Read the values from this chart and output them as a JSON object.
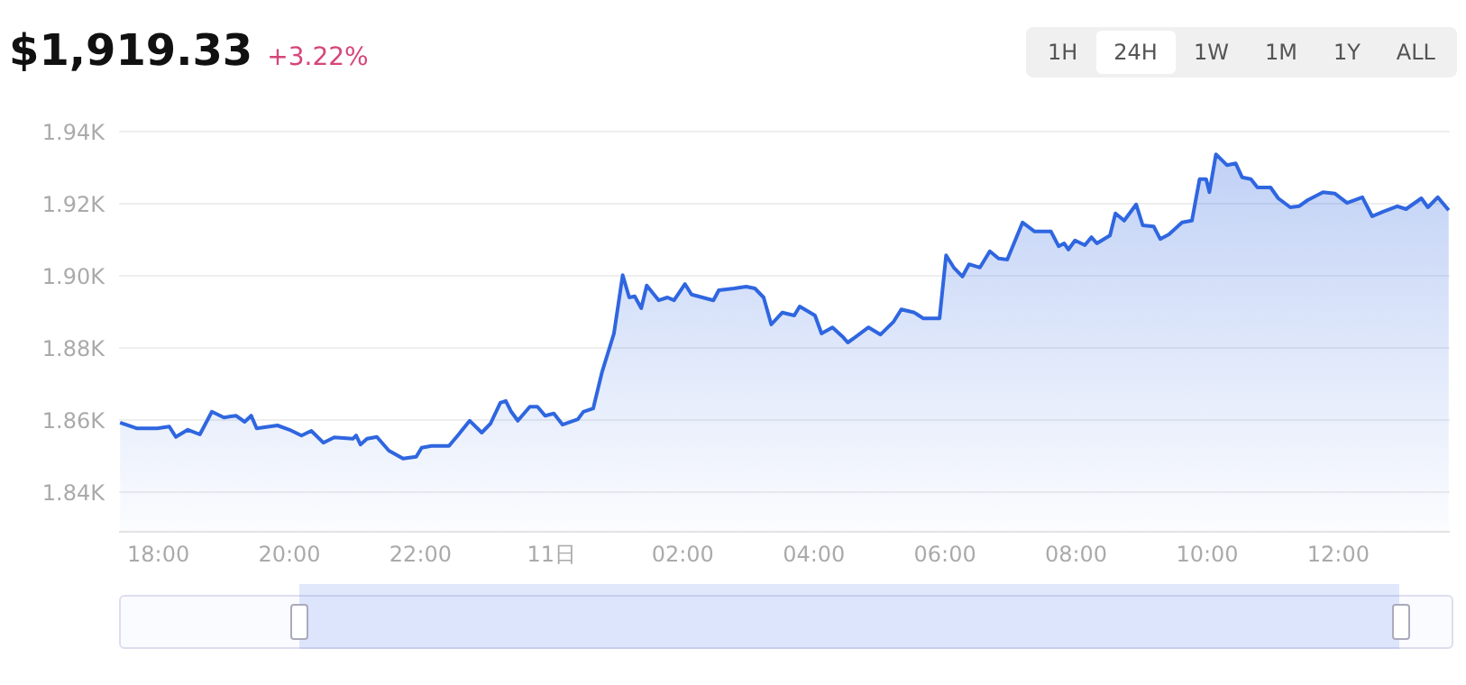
{
  "chart_data": {
    "type": "area",
    "title": "$1,919.33",
    "subtitle": "+3.22%",
    "annotations": [
      "1H",
      "24H",
      "1W",
      "1M",
      "1Y",
      "ALL"
    ],
    "x": [
      "--01-10T17:25",
      "--01-10T17:40",
      "--01-10T17:59",
      "--01-10T18:10",
      "--01-10T18:16",
      "--01-10T18:27",
      "--01-10T18:38",
      "--01-10T18:49",
      "--01-10T19:00",
      "--01-10T19:11",
      "--01-10T19:19",
      "--01-10T19:25",
      "--01-10T19:30",
      "--01-10T19:49",
      "--01-10T20:00",
      "--01-10T20:11",
      "--01-10T20:20",
      "--01-10T20:31",
      "--01-10T20:41",
      "--01-10T20:58",
      "--01-10T21:01",
      "--01-10T21:05",
      "--01-10T21:11",
      "--01-10T21:20",
      "--01-10T21:31",
      "--01-10T21:44",
      "--01-10T21:56",
      "--01-10T22:01",
      "--01-10T22:10",
      "--01-10T22:26",
      "--01-10T22:34",
      "--01-10T22:45",
      "--01-10T22:56",
      "--01-10T23:04",
      "--01-10T23:13",
      "--01-10T23:18",
      "--01-10T23:23",
      "--01-10T23:29",
      "--01-10T23:40",
      "--01-10T23:47",
      "--01-10T23:54",
      "--01-11T00:02",
      "--01-11T00:10",
      "--01-11T00:24",
      "--01-11T00:29",
      "--01-11T00:38",
      "--01-11T00:46",
      "--01-11T00:57",
      "--01-11T01:05",
      "--01-11T01:11",
      "--01-11T01:16",
      "--01-11T01:22",
      "--01-11T01:27",
      "--01-11T01:38",
      "--01-11T01:46",
      "--01-11T01:52",
      "--01-11T02:02",
      "--01-11T02:08",
      "--01-11T02:28",
      "--01-11T02:33",
      "--01-11T02:47",
      "--01-11T02:58",
      "--01-11T03:06",
      "--01-11T03:14",
      "--01-11T03:21",
      "--01-11T03:31",
      "--01-11T03:42",
      "--01-11T03:47",
      "--01-11T04:01",
      "--01-11T04:07",
      "--01-11T04:17",
      "--01-11T04:26",
      "--01-11T04:31",
      "--01-11T04:37",
      "--01-11T04:50",
      "--01-11T05:01",
      "--01-11T05:13",
      "--01-11T05:20",
      "--01-11T05:32",
      "--01-11T05:40",
      "--01-11T05:55",
      "--01-11T06:01",
      "--01-11T06:08",
      "--01-11T06:16",
      "--01-11T06:22",
      "--01-11T06:32",
      "--01-11T06:41",
      "--01-11T06:49",
      "--01-11T06:57",
      "--01-11T07:11",
      "--01-11T07:22",
      "--01-11T07:37",
      "--01-11T07:44",
      "--01-11T07:49",
      "--01-11T07:53",
      "--01-11T07:59",
      "--01-11T08:08",
      "--01-11T08:14",
      "--01-11T08:19",
      "--01-11T08:31",
      "--01-11T08:36",
      "--01-11T08:44",
      "--01-11T08:55",
      "--01-11T09:01",
      "--01-11T09:11",
      "--01-11T09:17",
      "--01-11T09:25",
      "--01-11T09:37",
      "--01-11T09:46",
      "--01-11T09:53",
      "--01-11T09:59",
      "--01-11T10:02",
      "--01-11T10:08",
      "--01-11T10:18",
      "--01-11T10:26",
      "--01-11T10:32",
      "--01-11T10:40",
      "--01-11T10:46",
      "--01-11T10:58",
      "--01-11T11:05",
      "--01-11T11:16",
      "--01-11T11:24",
      "--01-11T11:32",
      "--01-11T11:46",
      "--01-11T11:57",
      "--01-11T12:08",
      "--01-11T12:22",
      "--01-11T12:31",
      "--01-11T12:41",
      "--01-11T12:54",
      "--01-11T13:02",
      "--01-11T13:16",
      "--01-11T13:22",
      "--01-11T13:31",
      "--01-11T13:41"
    ],
    "series": [
      {
        "color": "#2f66e0",
        "values": [
          1859.3,
          1857.7,
          1857.7,
          1858.2,
          1855.3,
          1857.3,
          1856,
          1862.3,
          1860.7,
          1861.2,
          1859.5,
          1861.2,
          1857.7,
          1858.5,
          1857.3,
          1855.7,
          1857,
          1853.7,
          1855.2,
          1854.8,
          1855.7,
          1853.2,
          1854.8,
          1855.3,
          1851.5,
          1849.3,
          1849.8,
          1852.3,
          1852.8,
          1852.8,
          1855.7,
          1859.8,
          1856.5,
          1859,
          1864.8,
          1865.3,
          1862.3,
          1859.8,
          1863.7,
          1863.7,
          1861.2,
          1861.8,
          1858.7,
          1860.2,
          1862.3,
          1863.2,
          1873.2,
          1884,
          1900.2,
          1894,
          1894.3,
          1891,
          1897.3,
          1893.2,
          1894,
          1893.2,
          1897.7,
          1894.8,
          1893.2,
          1896,
          1896.5,
          1897,
          1896.5,
          1894,
          1886.5,
          1889.8,
          1889,
          1891.5,
          1889,
          1884,
          1885.7,
          1883.2,
          1881.5,
          1882.8,
          1885.7,
          1883.7,
          1887.3,
          1890.7,
          1889.8,
          1888.2,
          1888.2,
          1905.7,
          1902.3,
          1899.8,
          1903.2,
          1902.3,
          1906.8,
          1904.8,
          1904.5,
          1914.8,
          1912.3,
          1912.3,
          1908.2,
          1909,
          1907.3,
          1909.8,
          1908.5,
          1910.7,
          1909,
          1911.2,
          1917.3,
          1915.3,
          1919.8,
          1914,
          1913.7,
          1910.2,
          1911.5,
          1914.8,
          1915.3,
          1926.8,
          1926.8,
          1923.2,
          1933.7,
          1930.7,
          1931.2,
          1927.3,
          1926.8,
          1924.5,
          1924.5,
          1921.5,
          1919,
          1919.3,
          1921,
          1923.2,
          1922.8,
          1920.2,
          1921.8,
          1916.5,
          1917.8,
          1919.3,
          1918.5,
          1921.5,
          1919,
          1921.8,
          1918.2
        ]
      }
    ],
    "xlim": [
      "--01-10T17:24",
      "--01-11T13:42"
    ],
    "xticks": [
      {
        "value": "--01-10T18:00",
        "label": "18:00"
      },
      {
        "value": "--01-10T20:00",
        "label": "20:00"
      },
      {
        "value": "--01-10T22:00",
        "label": "22:00"
      },
      {
        "value": "--01-11T00:00",
        "label": "11日"
      },
      {
        "value": "--01-11T02:00",
        "label": "02:00"
      },
      {
        "value": "--01-11T04:00",
        "label": "04:00"
      },
      {
        "value": "--01-11T06:00",
        "label": "06:00"
      },
      {
        "value": "--01-11T08:00",
        "label": "08:00"
      },
      {
        "value": "--01-11T10:00",
        "label": "10:00"
      },
      {
        "value": "--01-11T12:00",
        "label": "12:00"
      }
    ],
    "ylim": [
      1829,
      1940
    ],
    "yticks": [
      {
        "value": 1840,
        "label": "1.84K"
      },
      {
        "value": 1860,
        "label": "1.86K"
      },
      {
        "value": 1880,
        "label": "1.88K"
      },
      {
        "value": 1900,
        "label": "1.90K"
      },
      {
        "value": 1920,
        "label": "1.92K"
      },
      {
        "value": 1940,
        "label": "1.94K"
      }
    ],
    "grid": "y",
    "legend": false
  }
}
